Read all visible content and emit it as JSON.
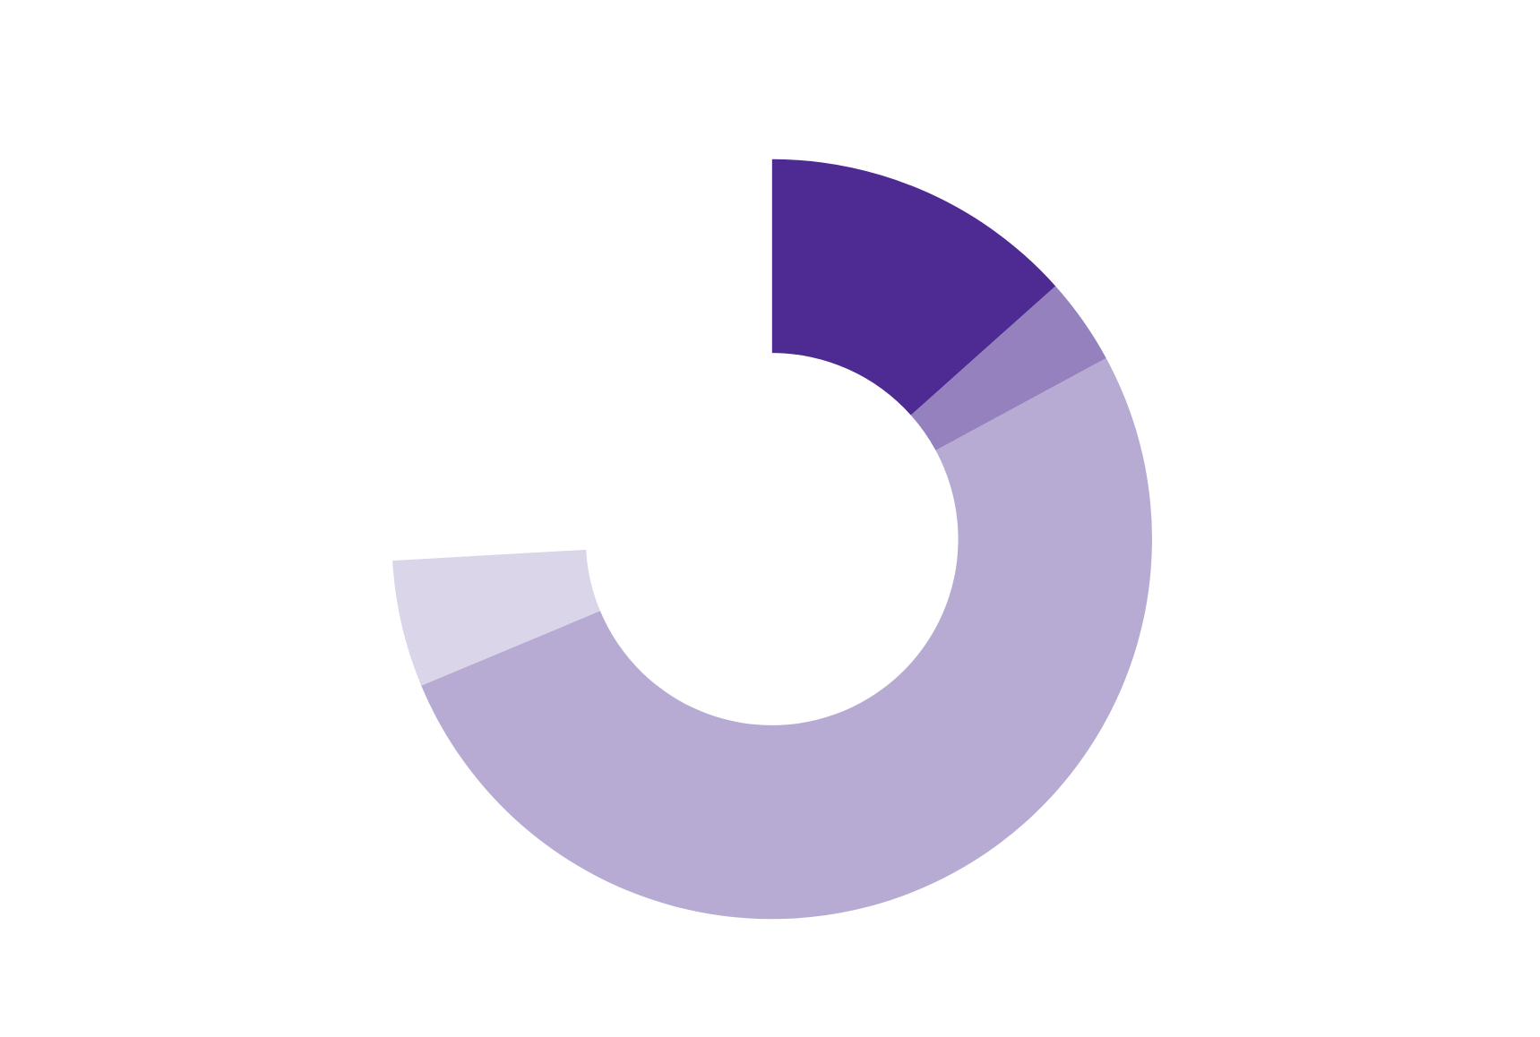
{
  "chart_data": {
    "type": "donut",
    "values": [
      13.4,
      3.7,
      51.6,
      5.4,
      25.9
    ],
    "colors": [
      "#4e2a93",
      "#9581bd",
      "#b7abd3",
      "#dbd5e9",
      "#ffffff"
    ],
    "inner_radius_ratio": 0.49
  }
}
